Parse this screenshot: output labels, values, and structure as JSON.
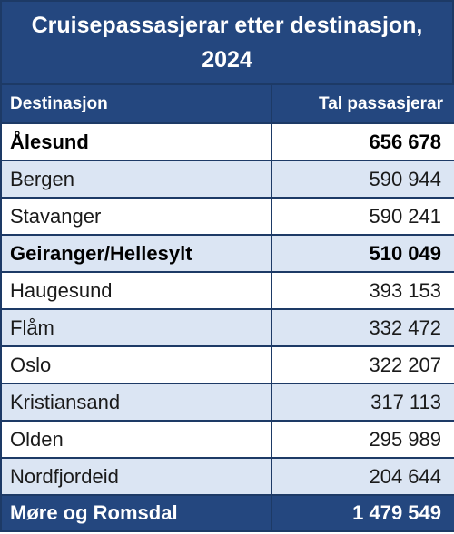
{
  "chart_data": {
    "type": "table",
    "title": "Cruisepassasjerar etter destinasjon, 2024",
    "columns": [
      "Destinasjon",
      "Tal passasjerar"
    ],
    "rows": [
      {
        "destination": "Ålesund",
        "value": 656678,
        "display": "656 678",
        "bold": true
      },
      {
        "destination": "Bergen",
        "value": 590944,
        "display": "590 944",
        "bold": false
      },
      {
        "destination": "Stavanger",
        "value": 590241,
        "display": "590 241",
        "bold": false
      },
      {
        "destination": "Geiranger/Hellesylt",
        "value": 510049,
        "display": "510 049",
        "bold": true
      },
      {
        "destination": "Haugesund",
        "value": 393153,
        "display": "393 153",
        "bold": false
      },
      {
        "destination": "Flåm",
        "value": 332472,
        "display": "332 472",
        "bold": false
      },
      {
        "destination": "Oslo",
        "value": 322207,
        "display": "322 207",
        "bold": false
      },
      {
        "destination": "Kristiansand",
        "value": 317113,
        "display": "317 113",
        "bold": false
      },
      {
        "destination": "Olden",
        "value": 295989,
        "display": "295 989",
        "bold": false
      },
      {
        "destination": "Nordfjordeid",
        "value": 204644,
        "display": "204 644",
        "bold": false
      }
    ],
    "total": {
      "label": "Møre og Romsdal",
      "value": 1479549,
      "display": "1 479 549"
    }
  },
  "colors": {
    "header": "#24477f",
    "stripe": "#dbe5f3",
    "border": "#1d3a66"
  }
}
